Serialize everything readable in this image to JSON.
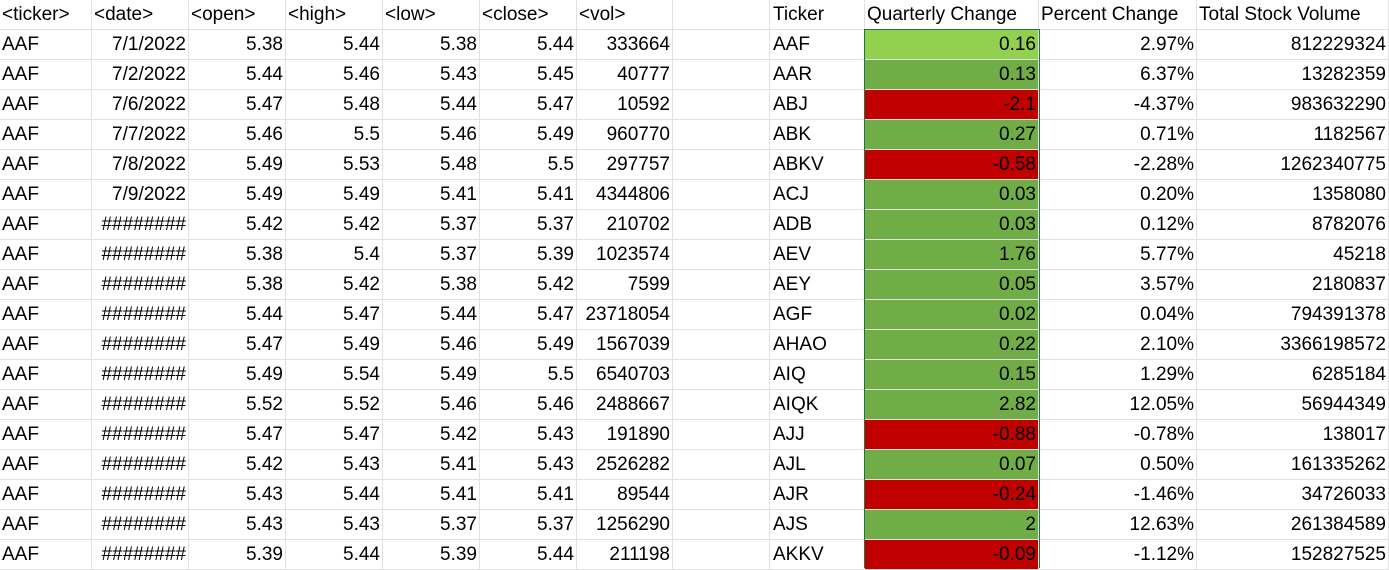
{
  "headers": {
    "ticker": "<ticker>",
    "date": "<date>",
    "open": "<open>",
    "high": "<high>",
    "low": "<low>",
    "close": "<close>",
    "vol": "<vol>",
    "summary_ticker": "Ticker",
    "quarterly_change": "Quarterly Change",
    "percent_change": "Percent Change",
    "total_stock_volume": "Total Stock Volume"
  },
  "colors": {
    "positive_fill": "#70ad47",
    "negative_fill": "#c00000",
    "selected_fill": "#92d050",
    "selection_border": "#217346",
    "gridline": "#e1e1e1"
  },
  "raw_rows": [
    {
      "ticker": "AAF",
      "date": "7/1/2022",
      "open": "5.38",
      "high": "5.44",
      "low": "5.38",
      "close": "5.44",
      "vol": "333664"
    },
    {
      "ticker": "AAF",
      "date": "7/2/2022",
      "open": "5.44",
      "high": "5.46",
      "low": "5.43",
      "close": "5.45",
      "vol": "40777"
    },
    {
      "ticker": "AAF",
      "date": "7/6/2022",
      "open": "5.47",
      "high": "5.48",
      "low": "5.44",
      "close": "5.47",
      "vol": "10592"
    },
    {
      "ticker": "AAF",
      "date": "7/7/2022",
      "open": "5.46",
      "high": "5.5",
      "low": "5.46",
      "close": "5.49",
      "vol": "960770"
    },
    {
      "ticker": "AAF",
      "date": "7/8/2022",
      "open": "5.49",
      "high": "5.53",
      "low": "5.48",
      "close": "5.5",
      "vol": "297757"
    },
    {
      "ticker": "AAF",
      "date": "7/9/2022",
      "open": "5.49",
      "high": "5.49",
      "low": "5.41",
      "close": "5.41",
      "vol": "4344806"
    },
    {
      "ticker": "AAF",
      "date": "########",
      "open": "5.42",
      "high": "5.42",
      "low": "5.37",
      "close": "5.37",
      "vol": "210702"
    },
    {
      "ticker": "AAF",
      "date": "########",
      "open": "5.38",
      "high": "5.4",
      "low": "5.37",
      "close": "5.39",
      "vol": "1023574"
    },
    {
      "ticker": "AAF",
      "date": "########",
      "open": "5.38",
      "high": "5.42",
      "low": "5.38",
      "close": "5.42",
      "vol": "7599"
    },
    {
      "ticker": "AAF",
      "date": "########",
      "open": "5.44",
      "high": "5.47",
      "low": "5.44",
      "close": "5.47",
      "vol": "23718054"
    },
    {
      "ticker": "AAF",
      "date": "########",
      "open": "5.47",
      "high": "5.49",
      "low": "5.46",
      "close": "5.49",
      "vol": "1567039"
    },
    {
      "ticker": "AAF",
      "date": "########",
      "open": "5.49",
      "high": "5.54",
      "low": "5.49",
      "close": "5.5",
      "vol": "6540703"
    },
    {
      "ticker": "AAF",
      "date": "########",
      "open": "5.52",
      "high": "5.52",
      "low": "5.46",
      "close": "5.46",
      "vol": "2488667"
    },
    {
      "ticker": "AAF",
      "date": "########",
      "open": "5.47",
      "high": "5.47",
      "low": "5.42",
      "close": "5.43",
      "vol": "191890"
    },
    {
      "ticker": "AAF",
      "date": "########",
      "open": "5.42",
      "high": "5.43",
      "low": "5.41",
      "close": "5.43",
      "vol": "2526282"
    },
    {
      "ticker": "AAF",
      "date": "########",
      "open": "5.43",
      "high": "5.44",
      "low": "5.41",
      "close": "5.41",
      "vol": "89544"
    },
    {
      "ticker": "AAF",
      "date": "########",
      "open": "5.43",
      "high": "5.43",
      "low": "5.37",
      "close": "5.37",
      "vol": "1256290"
    },
    {
      "ticker": "AAF",
      "date": "########",
      "open": "5.39",
      "high": "5.44",
      "low": "5.39",
      "close": "5.44",
      "vol": "211198"
    }
  ],
  "summary_rows": [
    {
      "ticker": "AAF",
      "quarterly_change": "0.16",
      "percent_change": "2.97%",
      "total_stock_volume": "812229324",
      "fill": "selected"
    },
    {
      "ticker": "AAR",
      "quarterly_change": "0.13",
      "percent_change": "6.37%",
      "total_stock_volume": "13282359",
      "fill": "positive"
    },
    {
      "ticker": "ABJ",
      "quarterly_change": "-2.1",
      "percent_change": "-4.37%",
      "total_stock_volume": "983632290",
      "fill": "negative"
    },
    {
      "ticker": "ABK",
      "quarterly_change": "0.27",
      "percent_change": "0.71%",
      "total_stock_volume": "1182567",
      "fill": "positive"
    },
    {
      "ticker": "ABKV",
      "quarterly_change": "-0.58",
      "percent_change": "-2.28%",
      "total_stock_volume": "1262340775",
      "fill": "negative"
    },
    {
      "ticker": "ACJ",
      "quarterly_change": "0.03",
      "percent_change": "0.20%",
      "total_stock_volume": "1358080",
      "fill": "positive"
    },
    {
      "ticker": "ADB",
      "quarterly_change": "0.03",
      "percent_change": "0.12%",
      "total_stock_volume": "8782076",
      "fill": "positive"
    },
    {
      "ticker": "AEV",
      "quarterly_change": "1.76",
      "percent_change": "5.77%",
      "total_stock_volume": "45218",
      "fill": "positive"
    },
    {
      "ticker": "AEY",
      "quarterly_change": "0.05",
      "percent_change": "3.57%",
      "total_stock_volume": "2180837",
      "fill": "positive"
    },
    {
      "ticker": "AGF",
      "quarterly_change": "0.02",
      "percent_change": "0.04%",
      "total_stock_volume": "794391378",
      "fill": "positive"
    },
    {
      "ticker": "AHAO",
      "quarterly_change": "0.22",
      "percent_change": "2.10%",
      "total_stock_volume": "3366198572",
      "fill": "positive"
    },
    {
      "ticker": "AIQ",
      "quarterly_change": "0.15",
      "percent_change": "1.29%",
      "total_stock_volume": "6285184",
      "fill": "positive"
    },
    {
      "ticker": "AIQK",
      "quarterly_change": "2.82",
      "percent_change": "12.05%",
      "total_stock_volume": "56944349",
      "fill": "positive"
    },
    {
      "ticker": "AJJ",
      "quarterly_change": "-0.88",
      "percent_change": "-0.78%",
      "total_stock_volume": "138017",
      "fill": "negative"
    },
    {
      "ticker": "AJL",
      "quarterly_change": "0.07",
      "percent_change": "0.50%",
      "total_stock_volume": "161335262",
      "fill": "positive"
    },
    {
      "ticker": "AJR",
      "quarterly_change": "-0.24",
      "percent_change": "-1.46%",
      "total_stock_volume": "34726033",
      "fill": "negative"
    },
    {
      "ticker": "AJS",
      "quarterly_change": "2",
      "percent_change": "12.63%",
      "total_stock_volume": "261384589",
      "fill": "positive"
    },
    {
      "ticker": "AKKV",
      "quarterly_change": "-0.09",
      "percent_change": "-1.12%",
      "total_stock_volume": "152827525",
      "fill": "negative"
    }
  ]
}
